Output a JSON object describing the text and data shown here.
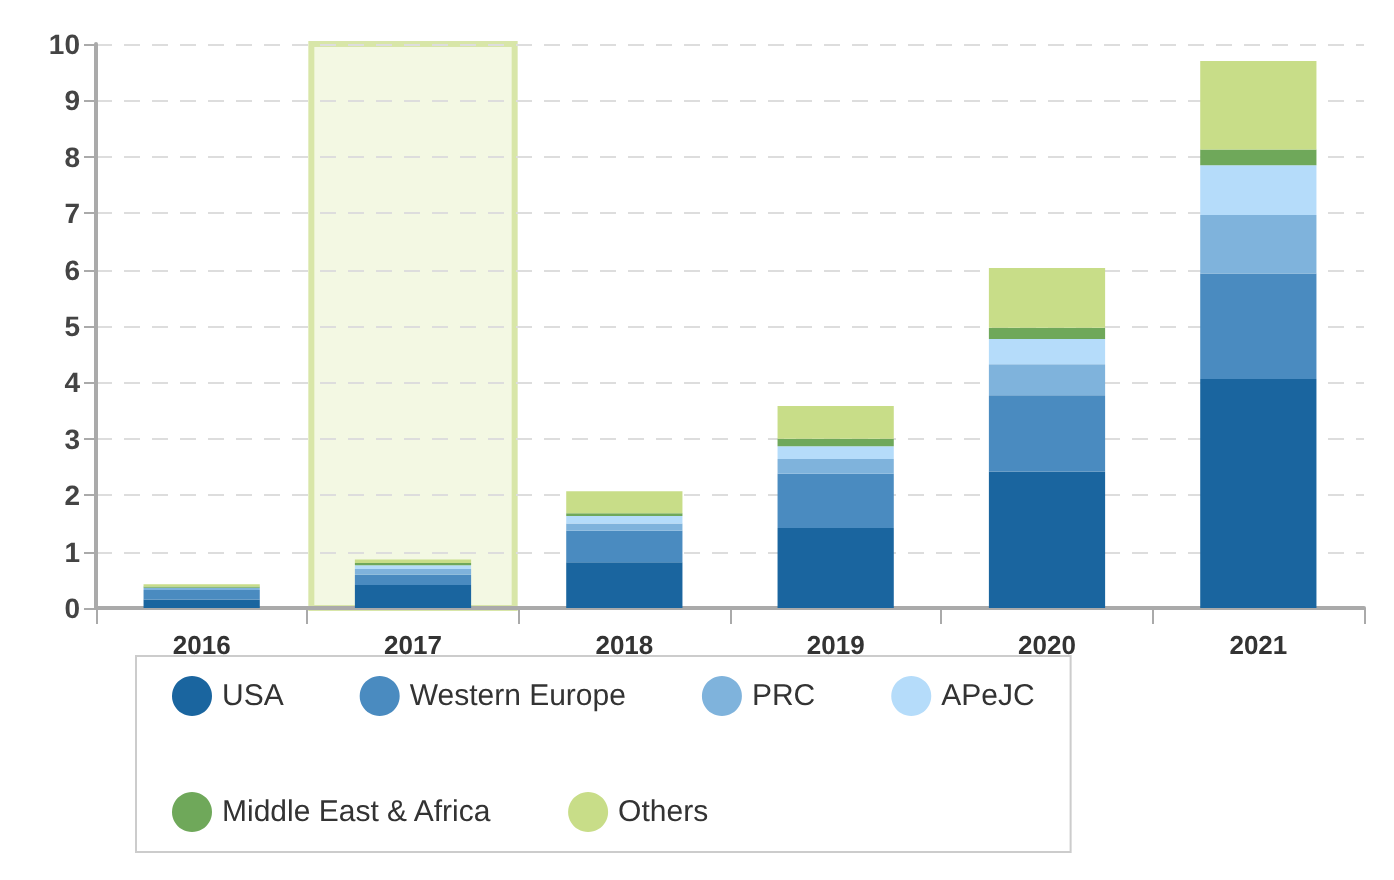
{
  "chart_data": {
    "type": "bar",
    "stacked": true,
    "categories": [
      "2016",
      "2017",
      "2018",
      "2019",
      "2020",
      "2021"
    ],
    "series": [
      {
        "name": "USA",
        "color": "#1a659f",
        "values": [
          0.15,
          0.41,
          0.81,
          1.42,
          2.42,
          4.06
        ]
      },
      {
        "name": "Western Europe",
        "color": "#4a8bc0",
        "values": [
          0.17,
          0.18,
          0.56,
          0.96,
          1.35,
          1.87
        ]
      },
      {
        "name": "PRC",
        "color": "#7fb3dc",
        "values": [
          0.04,
          0.1,
          0.13,
          0.26,
          0.55,
          1.04
        ]
      },
      {
        "name": "APeJC",
        "color": "#b5dcfa",
        "values": [
          null,
          0.07,
          0.13,
          0.23,
          0.45,
          0.88
        ]
      },
      {
        "name": "Middle East & Africa",
        "color": "#6fa85a",
        "values": [
          0.02,
          0.04,
          0.05,
          0.13,
          0.2,
          0.28
        ]
      },
      {
        "name": "Others",
        "color": "#c8dd88",
        "values": [
          0.04,
          0.06,
          0.39,
          0.58,
          1.06,
          1.57
        ]
      }
    ],
    "ylim": [
      0,
      10
    ],
    "yticks": [
      0,
      1,
      2,
      3,
      4,
      5,
      6,
      7,
      8,
      9,
      10
    ],
    "grid": "y",
    "legend": "bottom",
    "bands": [
      {
        "axis": "x",
        "from": "2017",
        "to": "2017",
        "color": "#f3f8e3"
      }
    ]
  }
}
